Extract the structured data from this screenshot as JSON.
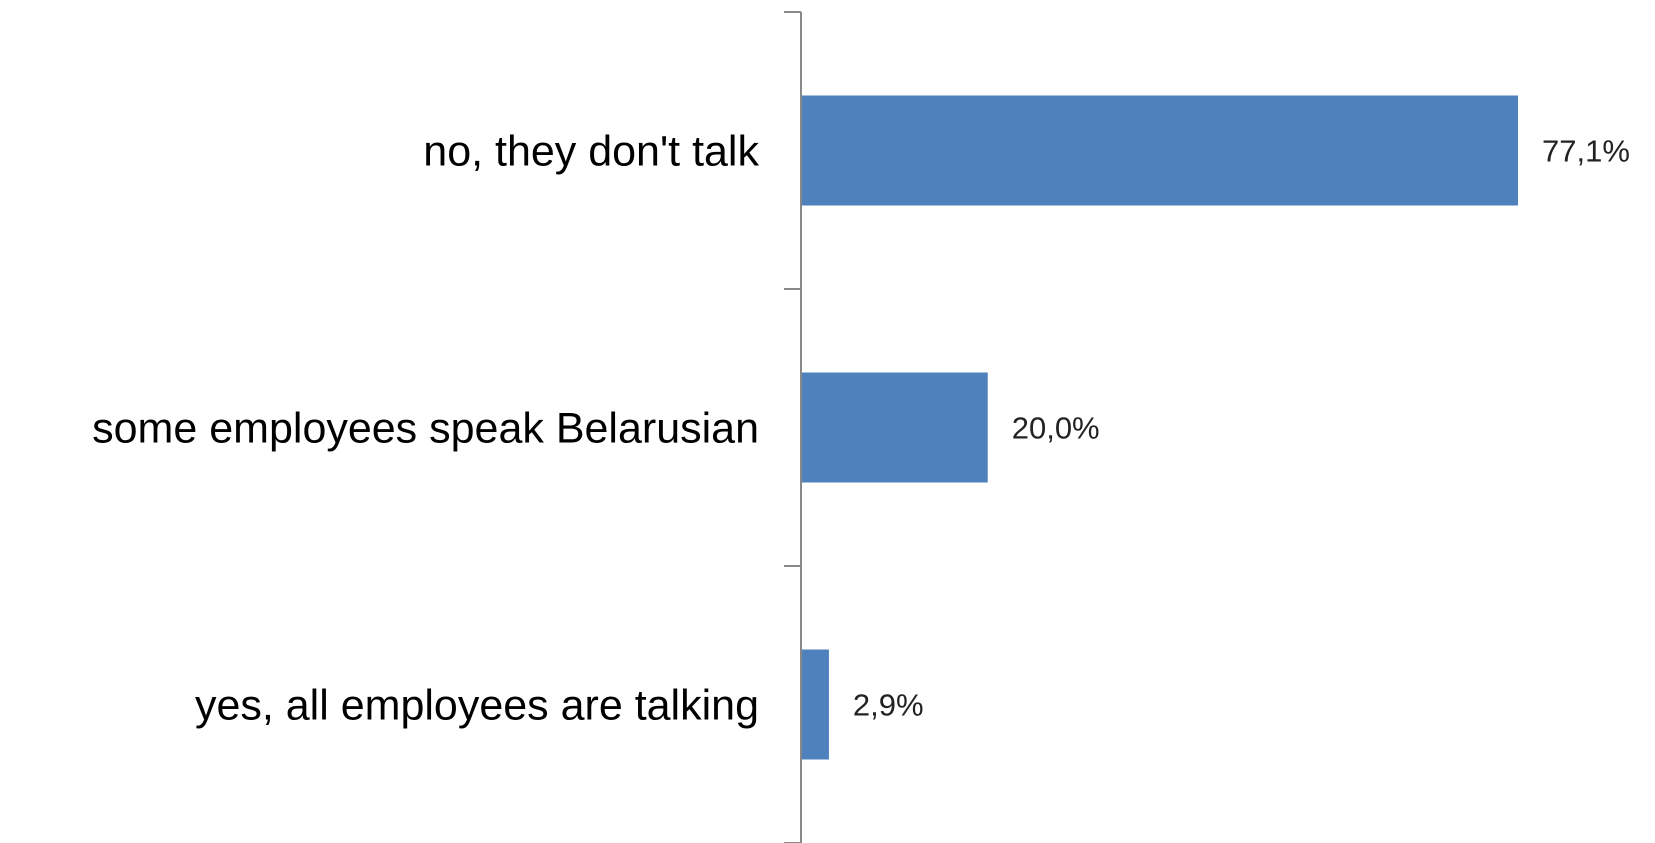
{
  "chart_data": {
    "type": "bar",
    "orientation": "horizontal",
    "categories": [
      "no, they don't talk",
      "some employees speak Belarusian",
      "yes, all employees are talking"
    ],
    "values": [
      77.1,
      20.0,
      2.9
    ],
    "value_labels": [
      "77,1%",
      "20,0%",
      "2,9%"
    ],
    "unit": "%",
    "bar_color": "#4F81BD",
    "xlim": [
      0,
      100
    ],
    "grid": false,
    "legend": "none"
  }
}
